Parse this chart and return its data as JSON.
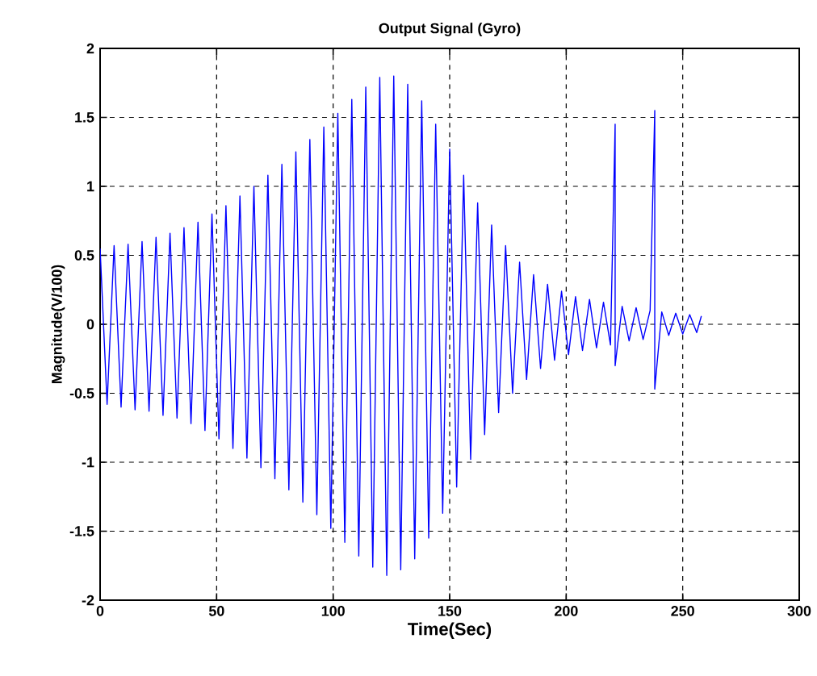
{
  "chart_data": {
    "type": "line",
    "title": "Output Signal (Gyro)",
    "xlabel": "Time(Sec)",
    "ylabel": "Magnitude(V/100)",
    "xlim": [
      0,
      300
    ],
    "xticks": [
      0,
      50,
      100,
      150,
      200,
      250,
      300
    ],
    "ylim": [
      -2,
      2
    ],
    "yticks": [
      -2,
      -1.5,
      -1,
      -0.5,
      0,
      0.5,
      1,
      1.5,
      2
    ],
    "grid": true,
    "marker": "none",
    "line_style": "solid",
    "series": [
      {
        "color": "#0000ff",
        "x": [
          0,
          3,
          6,
          9,
          12,
          15,
          18,
          21,
          24,
          27,
          30,
          33,
          36,
          39,
          42,
          45,
          48,
          51,
          54,
          57,
          60,
          63,
          66,
          69,
          72,
          75,
          78,
          81,
          84,
          87,
          90,
          93,
          96,
          99,
          102,
          105,
          108,
          111,
          114,
          117,
          120,
          123,
          126,
          129,
          132,
          135,
          138,
          141,
          144,
          147,
          150,
          153,
          156,
          159,
          162,
          165,
          168,
          171,
          174,
          177,
          180,
          183,
          186,
          189,
          192,
          195,
          198,
          201,
          204,
          207,
          210,
          213,
          216,
          219,
          221,
          221,
          224,
          227,
          230,
          233,
          236,
          238,
          238,
          241,
          244,
          247,
          250,
          253,
          256,
          258
        ],
        "values": [
          0.55,
          -0.58,
          0.57,
          -0.6,
          0.58,
          -0.62,
          0.6,
          -0.63,
          0.63,
          -0.66,
          0.66,
          -0.68,
          0.7,
          -0.72,
          0.74,
          -0.77,
          0.8,
          -0.83,
          0.86,
          -0.9,
          0.93,
          -0.97,
          1.0,
          -1.04,
          1.08,
          -1.12,
          1.16,
          -1.2,
          1.25,
          -1.29,
          1.34,
          -1.38,
          1.43,
          -1.48,
          1.53,
          -1.58,
          1.63,
          -1.68,
          1.72,
          -1.76,
          1.79,
          -1.82,
          1.8,
          -1.78,
          1.74,
          -1.7,
          1.62,
          -1.55,
          1.45,
          -1.37,
          1.27,
          -1.18,
          1.08,
          -0.98,
          0.88,
          -0.8,
          0.72,
          -0.64,
          0.57,
          -0.5,
          0.45,
          -0.4,
          0.36,
          -0.32,
          0.29,
          -0.26,
          0.24,
          -0.22,
          0.2,
          -0.19,
          0.18,
          -0.17,
          0.16,
          -0.15,
          1.45,
          -0.3,
          0.13,
          -0.12,
          0.12,
          -0.11,
          0.1,
          1.55,
          -0.47,
          0.09,
          -0.08,
          0.08,
          -0.07,
          0.07,
          -0.06,
          0.06
        ]
      }
    ]
  }
}
